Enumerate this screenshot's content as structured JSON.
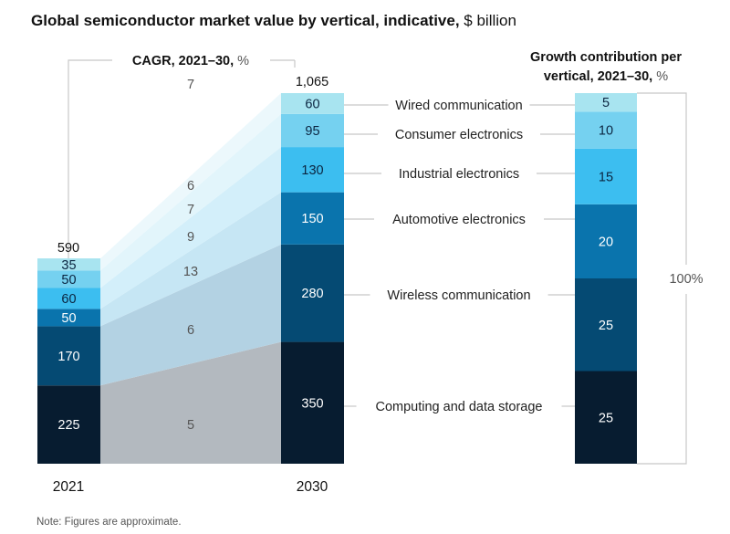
{
  "chart_data": {
    "type": "bar",
    "subtype": "stacked-bar-with-growth-bridge",
    "title": "Global semiconductor market value by vertical, indicative,",
    "title_unit": "$ billion",
    "categories": [
      "2021",
      "2030"
    ],
    "totals": [
      "590",
      "1,065"
    ],
    "total_values": [
      590,
      1065
    ],
    "series": [
      {
        "name": "Computing and data storage",
        "values": [
          225,
          350
        ],
        "cagr": 5,
        "growth_contribution": 25,
        "color": "#071c30",
        "label_color": "#ffffff"
      },
      {
        "name": "Wireless communication",
        "values": [
          170,
          280
        ],
        "cagr": 6,
        "growth_contribution": 25,
        "color": "#054a73",
        "label_color": "#ffffff"
      },
      {
        "name": "Automotive electronics",
        "values": [
          50,
          150
        ],
        "cagr": 13,
        "growth_contribution": 20,
        "color": "#0a74ad",
        "label_color": "#ffffff"
      },
      {
        "name": "Industrial electronics",
        "values": [
          60,
          130
        ],
        "cagr": 9,
        "growth_contribution": 15,
        "color": "#3cbef0",
        "label_color": "#0b2540"
      },
      {
        "name": "Consumer electronics",
        "values": [
          50,
          95
        ],
        "cagr": 7,
        "growth_contribution": 10,
        "color": "#75d1f0",
        "label_color": "#0b2540"
      },
      {
        "name": "Wired communication",
        "values": [
          35,
          60
        ],
        "cagr": 6,
        "growth_contribution": 5,
        "color": "#a8e4f0",
        "label_color": "#0b2540"
      }
    ],
    "bridge_colors": [
      "#b3b9bf",
      "#b3d2e3",
      "#c6e6f4",
      "#d3effa",
      "#e2f5fb",
      "#ecf8fc"
    ],
    "total_cagr": 7,
    "cagr_label": "CAGR, 2021–30,",
    "cagr_unit": "%",
    "growth_title_line1": "Growth contribution per",
    "growth_title_line2": "vertical, 2021–30,",
    "growth_unit": "%",
    "growth_total_label": "100%",
    "xlabel": "",
    "ylabel": "$ billion",
    "legend": "inline-right",
    "grid": false
  },
  "note": "Note: Figures are approximate."
}
